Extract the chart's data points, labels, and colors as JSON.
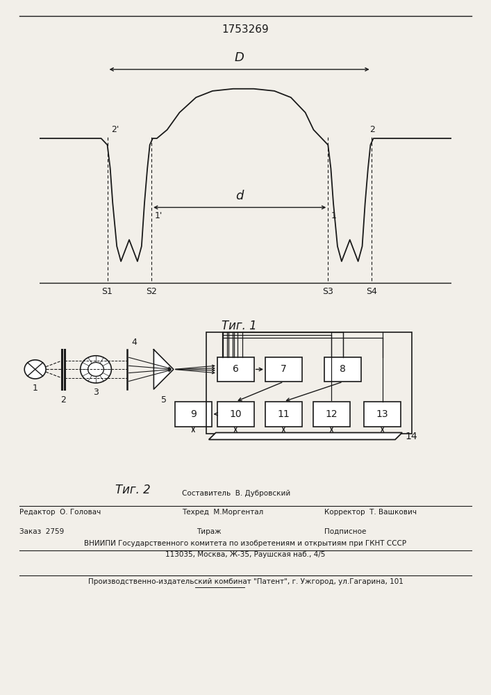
{
  "title": "1753269",
  "fig1_label": "Τиг. 1",
  "fig2_label": "Τиг. 2",
  "background_color": "#f2efe9",
  "line_color": "#1a1a1a"
}
